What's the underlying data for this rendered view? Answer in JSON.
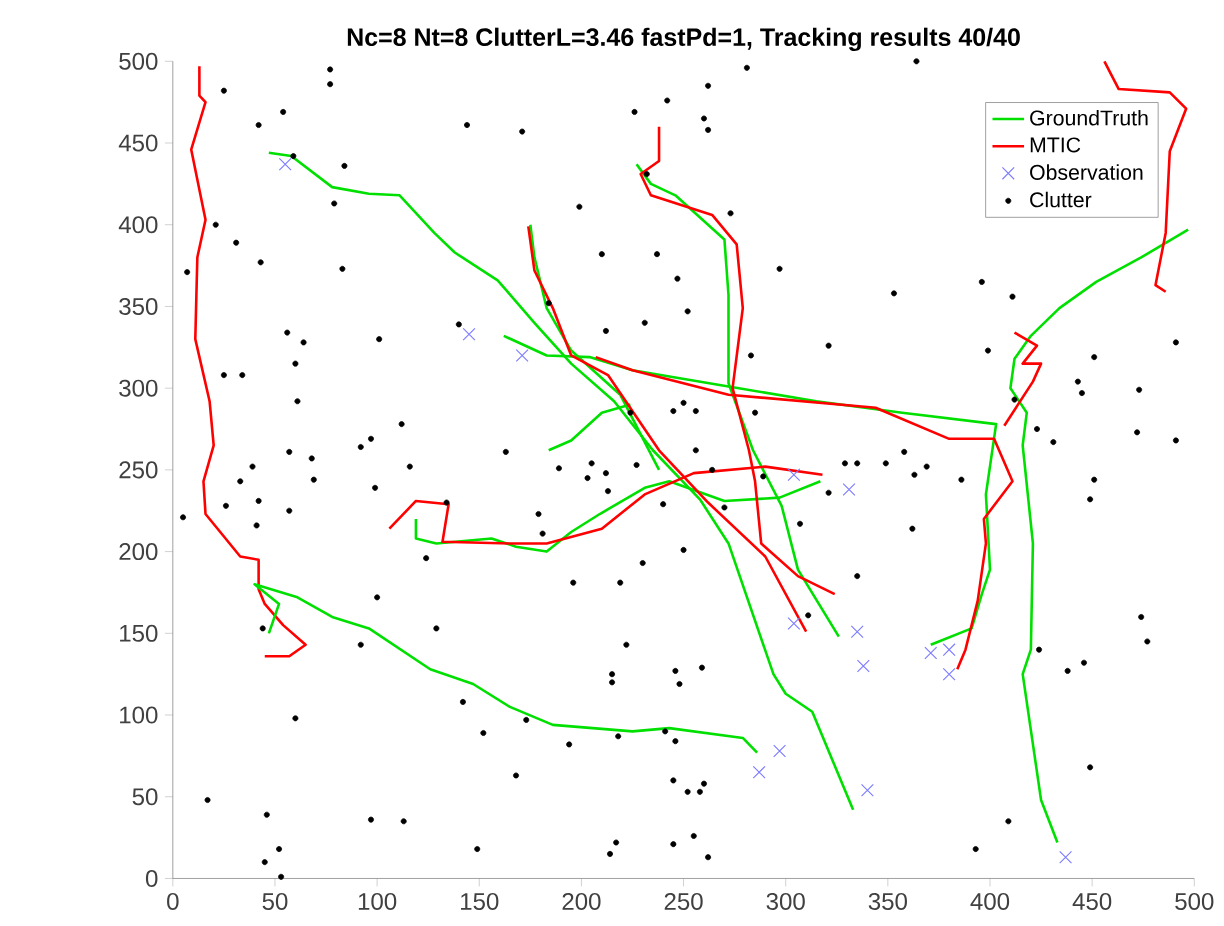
{
  "chart_data": {
    "type": "line",
    "title": "Nc=8 Nt=8 ClutterL=3.46 fastPd=1, Tracking results 40/40",
    "xlim": [
      0,
      500
    ],
    "ylim": [
      0,
      500
    ],
    "xticks": [
      0,
      50,
      100,
      150,
      200,
      250,
      300,
      350,
      400,
      450,
      500
    ],
    "yticks": [
      0,
      50,
      100,
      150,
      200,
      250,
      300,
      350,
      400,
      450,
      500
    ],
    "legend": "top right",
    "series": [
      {
        "name": "GroundTruth",
        "type": "line",
        "color": "#00e000",
        "x": [
          47,
          58,
          78,
          96,
          111,
          128,
          138,
          159,
          177,
          195,
          216,
          235,
          258,
          272,
          294,
          300,
          313,
          333
        ],
        "values": [
          444,
          442,
          423,
          419,
          418,
          395,
          383,
          366,
          340,
          315,
          292,
          262,
          232,
          205,
          125,
          113,
          102,
          42
        ]
      },
      {
        "name": "MTIC",
        "type": "line",
        "color": "#ff0000",
        "x": [
          13,
          13,
          16,
          9,
          16,
          12,
          11,
          18,
          20,
          15,
          16,
          33,
          42,
          42,
          45,
          54,
          65,
          57,
          45
        ],
        "values": [
          497,
          479,
          475,
          446,
          403,
          380,
          330,
          292,
          265,
          243,
          223,
          197,
          195,
          177,
          168,
          155,
          143,
          136,
          136
        ]
      },
      {
        "name": "Observation",
        "type": "scatter",
        "marker": "cross",
        "color": "#7b7bff",
        "x": [
          55,
          145,
          171,
          304,
          331,
          304,
          335,
          338,
          371,
          380,
          380,
          287,
          297,
          340,
          437
        ],
        "values": [
          437,
          333,
          320,
          247,
          238,
          156,
          151,
          130,
          138,
          140,
          125,
          65,
          78,
          54,
          13
        ]
      },
      {
        "name": "Clutter",
        "type": "scatter",
        "marker": "circle",
        "color": "#000000",
        "x": [
          25,
          77,
          77,
          54,
          42,
          144,
          171,
          226,
          59,
          84,
          79,
          199,
          21,
          31,
          43,
          83,
          210,
          7,
          184,
          140,
          56,
          64,
          101,
          212,
          231,
          60,
          25,
          34,
          61,
          224,
          112,
          97,
          92,
          57,
          68,
          163,
          232,
          364,
          281,
          262,
          242,
          260,
          262,
          273,
          237,
          247,
          297,
          252,
          396,
          411,
          353,
          283,
          321,
          399,
          491,
          451,
          443,
          445,
          473,
          285,
          245,
          250,
          256,
          412,
          423,
          472,
          491,
          431,
          256,
          358,
          5,
          39,
          33,
          26,
          42,
          41,
          69,
          57,
          99,
          116,
          134,
          189,
          205,
          212,
          203,
          213,
          179,
          181,
          227,
          124,
          230,
          196,
          219,
          100,
          129,
          44,
          92,
          222,
          215,
          215,
          60,
          142,
          173,
          152,
          218,
          194,
          168,
          17,
          46,
          97,
          113,
          52,
          149,
          45,
          53,
          217,
          214,
          264,
          240,
          270,
          289,
          321,
          329,
          335,
          349,
          363,
          369,
          386,
          307,
          362,
          250,
          335,
          311,
          246,
          248,
          259,
          424,
          438,
          446,
          449,
          451,
          474,
          477,
          241,
          246,
          245,
          252,
          258,
          260,
          449,
          409,
          245,
          255,
          262,
          393
        ],
        "values": [
          482,
          495,
          486,
          469,
          461,
          461,
          457,
          469,
          442,
          436,
          413,
          411,
          400,
          389,
          377,
          373,
          382,
          371,
          352,
          339,
          334,
          328,
          330,
          335,
          340,
          315,
          308,
          308,
          292,
          285,
          278,
          269,
          264,
          261,
          257,
          261,
          431,
          500,
          496,
          485,
          476,
          465,
          458,
          407,
          382,
          367,
          373,
          347,
          365,
          356,
          358,
          320,
          326,
          323,
          328,
          319,
          304,
          297,
          299,
          285,
          286,
          291,
          286,
          293,
          275,
          273,
          268,
          267,
          262,
          261,
          221,
          252,
          243,
          228,
          231,
          216,
          244,
          225,
          239,
          252,
          230,
          251,
          254,
          248,
          245,
          237,
          223,
          211,
          253,
          196,
          193,
          181,
          181,
          172,
          153,
          153,
          143,
          143,
          125,
          120,
          98,
          108,
          97,
          89,
          87,
          82,
          63,
          48,
          39,
          36,
          35,
          18,
          18,
          10,
          1,
          22,
          15,
          250,
          229,
          227,
          246,
          236,
          254,
          254,
          254,
          247,
          252,
          244,
          217,
          214,
          201,
          185,
          161,
          127,
          119,
          129,
          140,
          127,
          132,
          232,
          244,
          160,
          145,
          90,
          84,
          60,
          53,
          53,
          58,
          68,
          35,
          21,
          26,
          13,
          18
        ]
      },
      {
        "type": "line",
        "color": "#00e000",
        "x": [
          162,
          183,
          204,
          225,
          272,
          315,
          357,
          403,
          398,
          400,
          396,
          391,
          371
        ],
        "values": [
          332,
          320,
          319,
          311,
          301,
          292,
          285,
          278,
          235,
          189,
          174,
          153,
          143
        ]
      },
      {
        "type": "line",
        "color": "#00e000",
        "x": [
          497,
          474,
          452,
          434,
          420,
          412,
          410,
          418,
          416,
          421,
          420,
          416,
          425,
          433
        ],
        "values": [
          397,
          380,
          365,
          349,
          332,
          318,
          300,
          285,
          265,
          205,
          140,
          125,
          48,
          22
        ]
      },
      {
        "type": "line",
        "color": "#00e000",
        "x": [
          227,
          234,
          246,
          270,
          272,
          272,
          284,
          298,
          306,
          326
        ],
        "values": [
          437,
          425,
          418,
          391,
          357,
          303,
          262,
          228,
          189,
          148
        ]
      },
      {
        "type": "line",
        "color": "#00e000",
        "x": [
          175,
          177,
          183,
          195,
          219,
          238
        ],
        "values": [
          400,
          380,
          349,
          323,
          296,
          250
        ]
      },
      {
        "type": "line",
        "color": "#00e000",
        "x": [
          47,
          52,
          40,
          61,
          78,
          96,
          126,
          147,
          165,
          186,
          225,
          243,
          279,
          286
        ],
        "values": [
          150,
          168,
          180,
          172,
          160,
          153,
          128,
          119,
          105,
          94,
          90,
          92,
          86,
          77
        ]
      },
      {
        "type": "line",
        "color": "#00e000",
        "x": [
          119,
          119,
          129,
          156,
          168,
          183,
          195,
          209,
          231,
          243,
          270,
          297,
          317
        ],
        "values": [
          220,
          208,
          205,
          208,
          203,
          200,
          212,
          223,
          239,
          243,
          231,
          233,
          243
        ]
      },
      {
        "type": "line",
        "color": "#00e000",
        "x": [
          184,
          195,
          210,
          224
        ],
        "values": [
          262,
          268,
          285,
          290
        ]
      },
      {
        "type": "line",
        "color": "#ff0000",
        "x": [
          106,
          119,
          135,
          132,
          165,
          183,
          210,
          231,
          255,
          290,
          318
        ],
        "values": [
          214,
          231,
          229,
          206,
          205,
          205,
          214,
          235,
          248,
          252,
          247
        ]
      },
      {
        "type": "line",
        "color": "#ff0000",
        "x": [
          174,
          177,
          186,
          195,
          213,
          238,
          262,
          290,
          310
        ],
        "values": [
          399,
          372,
          349,
          320,
          308,
          262,
          230,
          197,
          151
        ]
      },
      {
        "type": "line",
        "color": "#ff0000",
        "x": [
          238,
          238,
          229,
          234,
          264,
          276,
          279,
          274,
          282,
          285,
          288,
          306,
          324
        ],
        "values": [
          460,
          439,
          431,
          418,
          406,
          388,
          349,
          300,
          262,
          243,
          205,
          185,
          174
        ]
      },
      {
        "type": "line",
        "color": "#ff0000",
        "x": [
          207,
          225,
          272,
          344,
          380,
          402,
          411,
          397,
          398,
          394,
          388,
          384
        ],
        "values": [
          319,
          311,
          296,
          288,
          269,
          269,
          243,
          220,
          205,
          170,
          140,
          128
        ]
      },
      {
        "type": "line",
        "color": "#ff0000",
        "x": [
          412,
          423,
          416,
          425,
          421,
          407
        ],
        "values": [
          334,
          326,
          315,
          315,
          304,
          277
        ]
      },
      {
        "type": "line",
        "color": "#ff0000",
        "x": [
          456,
          463,
          488,
          496,
          488,
          486,
          481,
          486
        ],
        "values": [
          500,
          483,
          481,
          471,
          445,
          395,
          363,
          359
        ]
      }
    ]
  }
}
